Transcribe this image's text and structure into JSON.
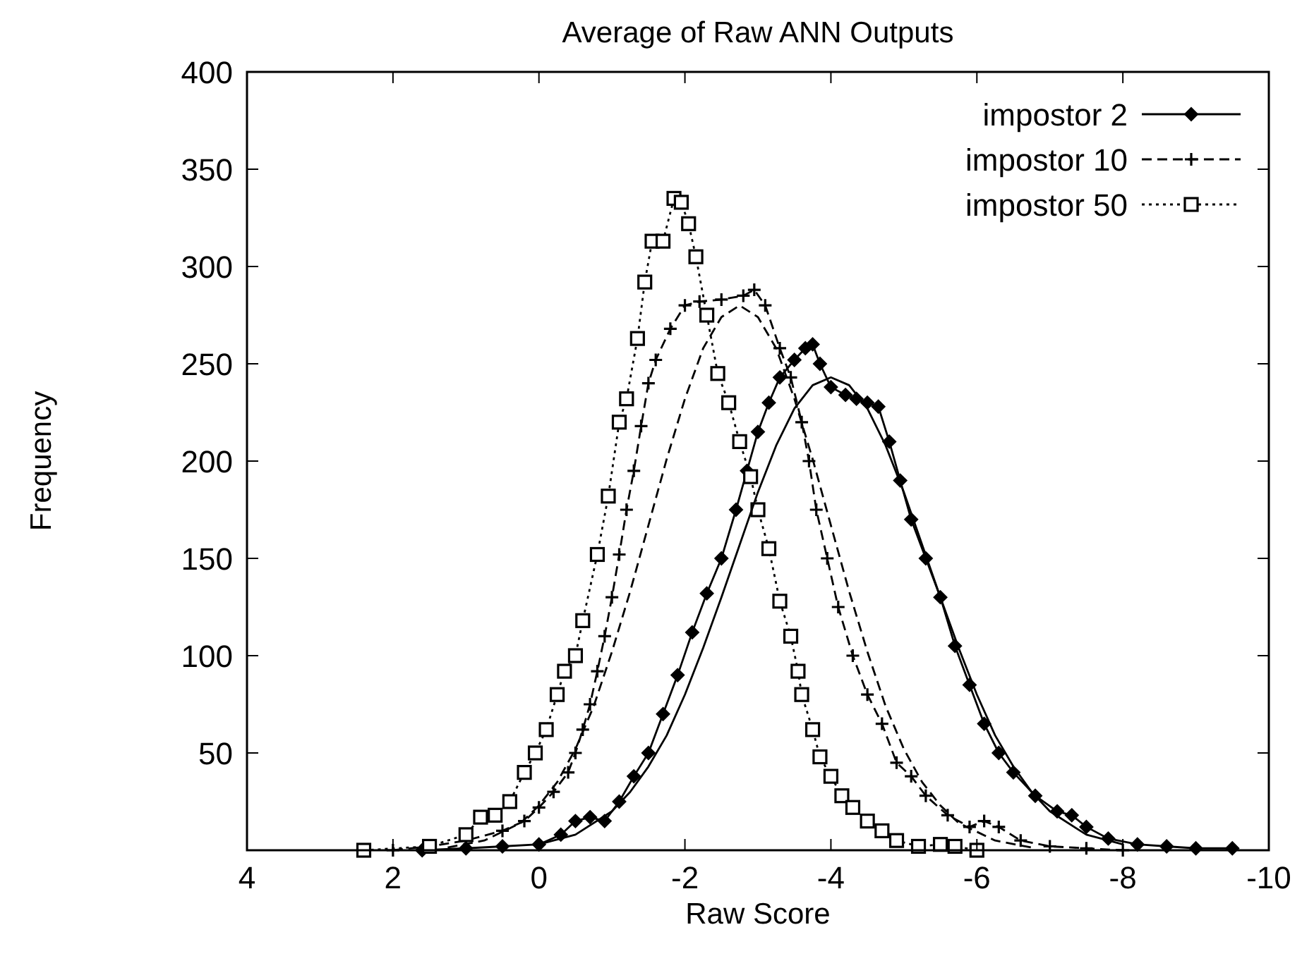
{
  "chart_data": {
    "type": "line",
    "title": "Average of Raw ANN Outputs",
    "xlabel": "Raw Score",
    "ylabel": "Frequency",
    "xlim": [
      4,
      -10
    ],
    "xticks": [
      4,
      2,
      0,
      -2,
      -4,
      -6,
      -8,
      -10
    ],
    "ylim": [
      0,
      400
    ],
    "yticks": [
      50,
      100,
      150,
      200,
      250,
      300,
      350,
      400
    ],
    "grid": false,
    "legend": "top right",
    "series": [
      {
        "name": "impostor 2",
        "color": "#000000",
        "marker": "diamond",
        "line_style": "solid",
        "x": [
          1.6,
          1.0,
          0.5,
          0,
          -0.3,
          -0.5,
          -0.7,
          -0.9,
          -1.1,
          -1.3,
          -1.5,
          -1.7,
          -1.9,
          -2.1,
          -2.3,
          -2.5,
          -2.7,
          -2.85,
          -3.0,
          -3.15,
          -3.3,
          -3.5,
          -3.65,
          -3.75,
          -3.85,
          -4.0,
          -4.2,
          -4.35,
          -4.5,
          -4.65,
          -4.8,
          -4.95,
          -5.1,
          -5.3,
          -5.5,
          -5.7,
          -5.9,
          -6.1,
          -6.3,
          -6.5,
          -6.8,
          -7.1,
          -7.3,
          -7.5,
          -7.8,
          -8.2,
          -8.6,
          -9.0,
          -9.5
        ],
        "values": [
          0,
          1,
          2,
          3,
          8,
          15,
          17,
          15,
          25,
          38,
          50,
          70,
          90,
          112,
          132,
          150,
          175,
          195,
          215,
          230,
          243,
          252,
          258,
          260,
          250,
          238,
          234,
          232,
          230,
          228,
          210,
          190,
          170,
          150,
          130,
          105,
          85,
          65,
          50,
          40,
          28,
          20,
          18,
          12,
          6,
          3,
          2,
          1,
          1
        ]
      },
      {
        "name": "impostor 10",
        "color": "#000000",
        "marker": "cross",
        "line_style": "dashed",
        "x": [
          2.0,
          1.5,
          1.0,
          0.5,
          0.2,
          0,
          -0.2,
          -0.4,
          -0.5,
          -0.6,
          -0.7,
          -0.8,
          -0.9,
          -1.0,
          -1.1,
          -1.2,
          -1.3,
          -1.4,
          -1.5,
          -1.6,
          -1.8,
          -2.0,
          -2.2,
          -2.5,
          -2.8,
          -2.95,
          -3.1,
          -3.3,
          -3.45,
          -3.6,
          -3.7,
          -3.8,
          -3.95,
          -4.1,
          -4.3,
          -4.5,
          -4.7,
          -4.9,
          -5.1,
          -5.3,
          -5.6,
          -5.9,
          -6.1,
          -6.3,
          -6.6,
          -7.0,
          -7.5,
          -8.0
        ],
        "values": [
          0,
          2,
          5,
          10,
          15,
          22,
          30,
          40,
          50,
          62,
          75,
          92,
          110,
          130,
          152,
          175,
          195,
          218,
          240,
          252,
          268,
          280,
          282,
          283,
          285,
          288,
          280,
          258,
          243,
          220,
          200,
          175,
          150,
          125,
          100,
          80,
          65,
          45,
          38,
          28,
          18,
          12,
          15,
          12,
          5,
          2,
          1,
          0
        ]
      },
      {
        "name": "impostor 50",
        "color": "#000000",
        "marker": "square",
        "line_style": "dotted",
        "x": [
          2.4,
          1.5,
          1.0,
          0.8,
          0.6,
          0.4,
          0.2,
          0.05,
          -0.1,
          -0.25,
          -0.35,
          -0.5,
          -0.6,
          -0.8,
          -0.95,
          -1.1,
          -1.2,
          -1.35,
          -1.45,
          -1.55,
          -1.7,
          -1.85,
          -1.95,
          -2.05,
          -2.15,
          -2.3,
          -2.45,
          -2.6,
          -2.75,
          -2.9,
          -3.0,
          -3.15,
          -3.3,
          -3.45,
          -3.55,
          -3.6,
          -3.75,
          -3.85,
          -4.0,
          -4.15,
          -4.3,
          -4.5,
          -4.7,
          -4.9,
          -5.2,
          -5.5,
          -5.7,
          -6.0
        ],
        "values": [
          0,
          2,
          8,
          17,
          18,
          25,
          40,
          50,
          62,
          80,
          92,
          100,
          118,
          152,
          182,
          220,
          232,
          263,
          292,
          313,
          313,
          335,
          333,
          322,
          305,
          275,
          245,
          230,
          210,
          192,
          175,
          155,
          128,
          110,
          92,
          80,
          62,
          48,
          38,
          28,
          22,
          15,
          10,
          5,
          2,
          3,
          2,
          0
        ]
      },
      {
        "color": "#000000",
        "marker": "none",
        "line_style": "solid",
        "x": [
          0,
          -0.5,
          -1,
          -1.25,
          -1.5,
          -1.75,
          -2,
          -2.25,
          -2.5,
          -2.75,
          -3,
          -3.25,
          -3.5,
          -3.75,
          -4,
          -4.25,
          -4.5,
          -4.75,
          -5,
          -5.25,
          -5.5,
          -5.75,
          -6,
          -6.25,
          -6.5,
          -6.75,
          -7,
          -7.5,
          -8
        ],
        "values": [
          3,
          8,
          20,
          30,
          43,
          59,
          80,
          104,
          130,
          157,
          184,
          208,
          227,
          239,
          243,
          239,
          227,
          208,
          184,
          157,
          130,
          104,
          80,
          59,
          43,
          30,
          20,
          8,
          3
        ]
      },
      {
        "color": "#000000",
        "marker": "none",
        "line_style": "dashed",
        "x": [
          1.25,
          0.75,
          0.25,
          0,
          -0.25,
          -0.5,
          -0.75,
          -1,
          -1.25,
          -1.5,
          -1.75,
          -2,
          -2.25,
          -2.5,
          -2.75,
          -3,
          -3.25,
          -3.5,
          -3.75,
          -4,
          -4.25,
          -4.5,
          -4.75,
          -5,
          -5.25,
          -5.5,
          -5.75,
          -6.25,
          -6.75
        ],
        "values": [
          1.4,
          5,
          14,
          23,
          35,
          52,
          74,
          102,
          133,
          167,
          201,
          232,
          258,
          274,
          280,
          274,
          258,
          232,
          201,
          167,
          133,
          102,
          74,
          52,
          35,
          23,
          14,
          5,
          1.4
        ]
      }
    ]
  }
}
